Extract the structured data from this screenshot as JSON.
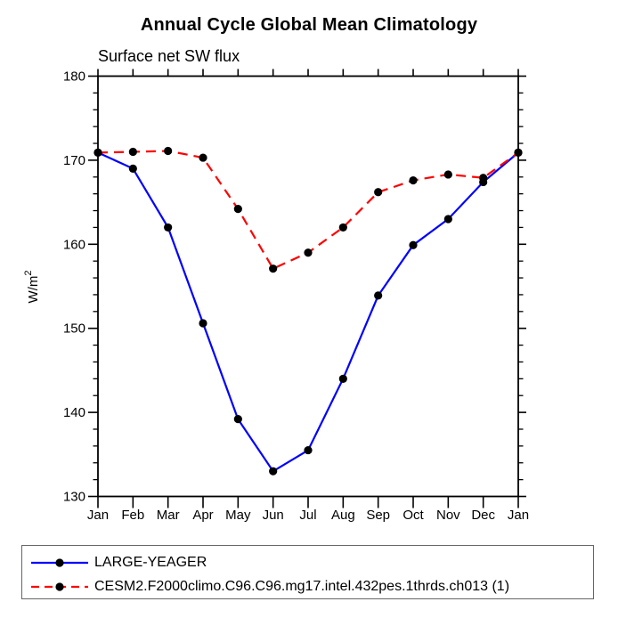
{
  "page": {
    "background": "#ffffff"
  },
  "chart_data": {
    "type": "line",
    "title": "Annual Cycle Global Mean Climatology",
    "subtitle": "Surface net SW flux",
    "ylabel": "W/m²",
    "ylabel_parts": {
      "base": "W/m",
      "sup": "2"
    },
    "x_tick_labels": [
      "Jan",
      "Feb",
      "Mar",
      "Apr",
      "May",
      "Jun",
      "Jul",
      "Aug",
      "Sep",
      "Oct",
      "Nov",
      "Dec",
      "Jan"
    ],
    "ylim": [
      130,
      180
    ],
    "y_major_ticks": [
      130,
      140,
      150,
      160,
      170,
      180
    ],
    "y_minor_step": 2,
    "grid": false,
    "legend_position": "bottom-left-box",
    "axis_color": "#000000",
    "marker": {
      "shape": "circle",
      "color": "#000000"
    },
    "series": [
      {
        "name": "LARGE-YEAGER",
        "color": "#0000ff",
        "line_style": "solid",
        "values": [
          170.9,
          169.0,
          162.0,
          150.6,
          139.2,
          133.0,
          135.5,
          144.0,
          153.9,
          159.9,
          163.0,
          167.4,
          170.9
        ]
      },
      {
        "name": "CESM2.F2000climo.C96.C96.mg17.intel.432pes.1thrds.ch013 (1)",
        "color": "#ff0000",
        "line_style": "dashed",
        "values": [
          170.9,
          171.0,
          171.1,
          170.3,
          164.2,
          157.1,
          159.0,
          162.0,
          166.2,
          167.6,
          168.3,
          167.9,
          170.9
        ]
      }
    ]
  }
}
